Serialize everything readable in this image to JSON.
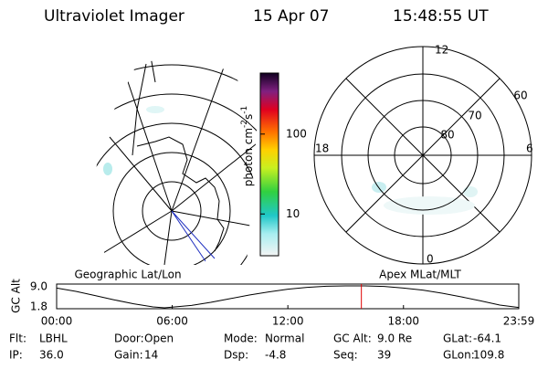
{
  "header": {
    "title": "Ultraviolet Imager",
    "date": "15 Apr 07",
    "time": "15:48:55 UT"
  },
  "colorbar": {
    "label": [
      "photon cm",
      "-2",
      "s",
      "-1"
    ],
    "ticks": [
      10,
      100
    ],
    "lim": [
      3,
      580
    ]
  },
  "left_map": {
    "label": "Geographic Lat/Lon"
  },
  "right_map": {
    "label": "Apex MLat/MLT",
    "mlt_labels": [
      12,
      18,
      6,
      0
    ],
    "lat_labels": [
      80,
      70,
      60
    ]
  },
  "orbit": {
    "ylabel": "GC Alt",
    "yticks": [
      "9.0",
      "1.8"
    ],
    "ylim": [
      1.8,
      9.0
    ],
    "xlim": [
      0,
      23.983
    ],
    "xticks": [
      {
        "value": 0,
        "label": "00:00"
      },
      {
        "value": 6,
        "label": "06:00"
      },
      {
        "value": 12,
        "label": "12:00"
      },
      {
        "value": 18,
        "label": "18:00"
      },
      {
        "value": 23.983,
        "label": "23:59"
      }
    ],
    "x_hours": [
      0,
      1,
      2,
      3,
      4,
      5,
      5.6,
      7,
      8,
      9,
      10,
      11,
      12,
      13,
      14,
      15,
      16,
      17,
      18,
      19,
      20,
      21,
      22,
      23,
      23.98
    ],
    "alt": [
      8.3,
      7.2,
      5.8,
      4.4,
      3.1,
      2.1,
      1.8,
      2.6,
      3.6,
      4.8,
      6.0,
      7.0,
      7.9,
      8.5,
      8.9,
      9.0,
      9.0,
      8.8,
      8.3,
      7.6,
      6.6,
      5.4,
      4.1,
      2.7,
      1.9
    ],
    "marker_hour": 15.815
  },
  "footer": [
    [
      "Flt:",
      "LBHL"
    ],
    [
      "Door:",
      "Open"
    ],
    [
      "Mode:",
      "Normal"
    ],
    [
      "GC Alt:",
      "9.0 Re"
    ],
    [
      "GLat:",
      "-64.1"
    ],
    [
      "IP:",
      "36.0"
    ],
    [
      "Gain:",
      "14"
    ],
    [
      "Dsp:",
      "-4.8"
    ],
    [
      "Seq:",
      "39"
    ],
    [
      "GLon:",
      "109.8"
    ]
  ]
}
